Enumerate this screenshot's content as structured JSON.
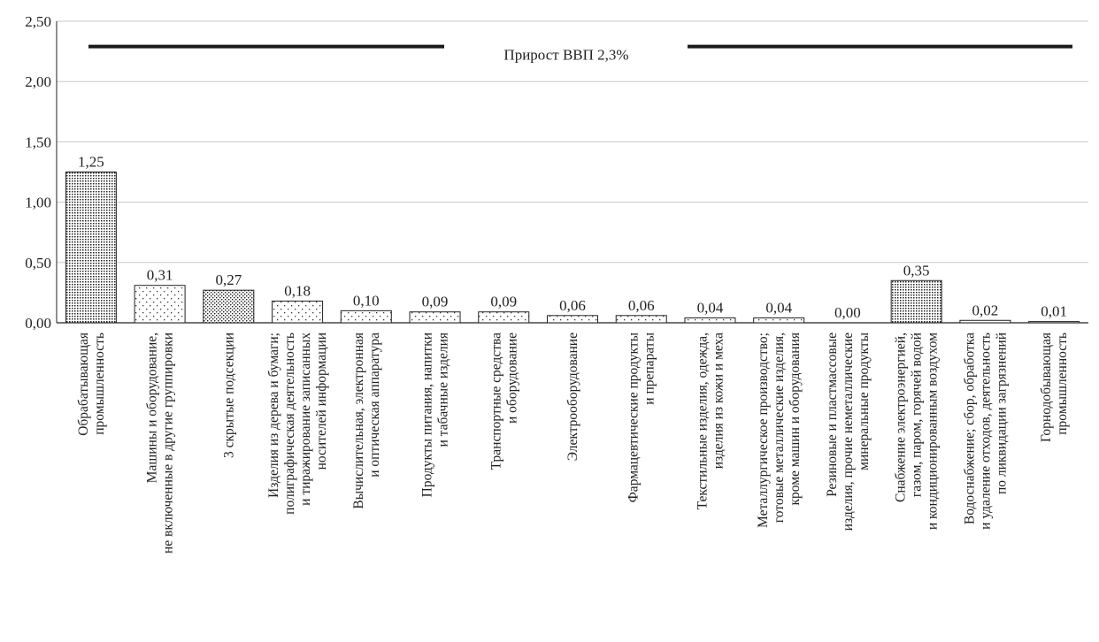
{
  "chart_data": {
    "type": "bar",
    "categories": [
      [
        "Обрабатывающая",
        "промышленность"
      ],
      [
        "Машины и оборудование,",
        "не включенные в другие группировки"
      ],
      [
        "3 скрытые подсекции"
      ],
      [
        "Изделия из дерева и бумаги;",
        "полиграфическая деятельность",
        "и тиражирование записанных",
        "носителей информации"
      ],
      [
        "Вычислительная, электронная",
        "и оптическая аппаратура"
      ],
      [
        "Продукты питания, напитки",
        "и табачные изделия"
      ],
      [
        "Транспортные средства",
        "и оборудование"
      ],
      [
        "Электрооборудование"
      ],
      [
        "Фармацевтические продукты",
        "и препараты"
      ],
      [
        "Текстильные изделия, одежда,",
        "изделия из кожи и меха"
      ],
      [
        "Металлургическое производство;",
        "готовые металлические изделия,",
        "кроме машин и оборудования"
      ],
      [
        "Резиновые и пластмассовые",
        "изделия, прочие неметаллические",
        "минеральные продукты"
      ],
      [
        "Снабжение электроэнергией,",
        "газом, паром, горячей водой",
        "и кондиционированным воздухом"
      ],
      [
        "Водоснабжение; сбор, обработка",
        "и удаление отходов, деятельность",
        "по ликвидации загрязнений"
      ],
      [
        "Горнодобывающая",
        "промышленность"
      ]
    ],
    "values": [
      1.25,
      0.31,
      0.27,
      0.18,
      0.1,
      0.09,
      0.09,
      0.06,
      0.06,
      0.04,
      0.04,
      0.0,
      0.35,
      0.02,
      0.01
    ],
    "value_labels": [
      "1,25",
      "0,31",
      "0,27",
      "0,18",
      "0,10",
      "0,09",
      "0,09",
      "0,06",
      "0,06",
      "0,04",
      "0,04",
      "0,00",
      "0,35",
      "0,02",
      "0,01"
    ],
    "patterns": [
      "dense",
      "sparse",
      "medium",
      "sparse",
      "sparse",
      "sparse",
      "sparse",
      "sparse",
      "sparse",
      "sparse",
      "sparse",
      "sparse",
      "dense",
      "sparse",
      "sparse"
    ],
    "ylim": [
      0,
      2.5
    ],
    "yticks": [
      0,
      0.5,
      1.0,
      1.5,
      2.0,
      2.5
    ],
    "ytick_labels": [
      "0,00",
      "0,50",
      "1,00",
      "1,50",
      "2,00",
      "2,50"
    ],
    "grid": true,
    "reference_line": {
      "value": 2.29,
      "label": "Прирост ВВП 2,3%"
    },
    "title": "",
    "xlabel": "",
    "ylabel": ""
  },
  "colors": {
    "grid": "#c8c8c8",
    "bar_border": "#222222",
    "ref_line": "#1a1a1a",
    "bar_fill": "#ffffff"
  }
}
